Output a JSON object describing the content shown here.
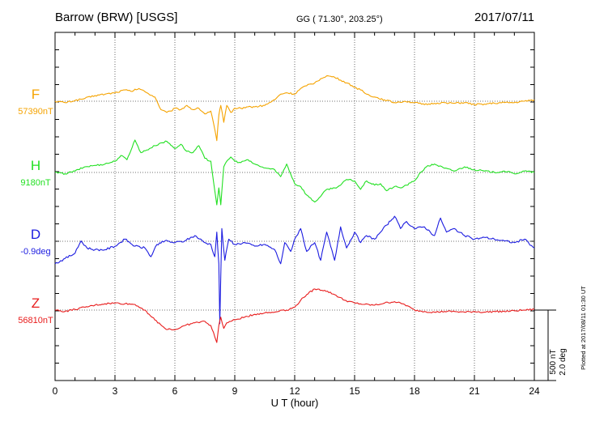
{
  "header": {
    "station": "Barrow (BRW)  [USGS]",
    "coords": "GG ( 71.30°, 203.25°)",
    "date": "2017/07/11"
  },
  "footer_note": "Plotted at 2017/08/11 01:30 UT",
  "scale": {
    "nt": "500 nT",
    "deg": "2.0 deg"
  },
  "chart_data": {
    "type": "line",
    "xlabel": "U T (hour)",
    "xlim": [
      0,
      24
    ],
    "xticks": [
      "0",
      "3",
      "6",
      "9",
      "12",
      "15",
      "18",
      "21",
      "24"
    ],
    "grid": true,
    "series": [
      {
        "name": "F",
        "baseline_label": "57390nT",
        "color": "#f5a300",
        "unit": "nT",
        "baseline": 57390,
        "x": [
          0,
          0.5,
          1,
          1.5,
          2,
          2.5,
          3,
          3.5,
          3.8,
          4.2,
          4.6,
          5,
          5.3,
          5.6,
          5.8,
          6,
          6.3,
          6.6,
          6.9,
          7.2,
          7.5,
          7.8,
          8.0,
          8.1,
          8.2,
          8.3,
          8.45,
          8.6,
          8.8,
          9,
          9.3,
          9.6,
          10,
          10.5,
          11,
          11.3,
          11.6,
          12,
          12.3,
          12.6,
          13,
          13.3,
          13.6,
          14,
          14.3,
          14.6,
          15,
          15.3,
          15.6,
          16,
          16.5,
          17,
          17.5,
          18,
          18.5,
          19,
          19.5,
          20,
          20.5,
          21,
          21.5,
          22,
          22.5,
          23,
          23.5,
          24
        ],
        "y": [
          57390,
          57380,
          57395,
          57410,
          57430,
          57440,
          57450,
          57470,
          57460,
          57480,
          57450,
          57420,
          57330,
          57310,
          57320,
          57340,
          57330,
          57360,
          57330,
          57340,
          57300,
          57320,
          57190,
          57110,
          57290,
          57360,
          57240,
          57360,
          57310,
          57340,
          57340,
          57350,
          57350,
          57360,
          57400,
          57440,
          57450,
          57440,
          57480,
          57500,
          57520,
          57550,
          57570,
          57560,
          57540,
          57520,
          57490,
          57470,
          57440,
          57420,
          57400,
          57380,
          57390,
          57380,
          57365,
          57375,
          57380,
          57375,
          57380,
          57365,
          57370,
          57375,
          57380,
          57380,
          57390,
          57400
        ]
      },
      {
        "name": "H",
        "baseline_label": "9180nT",
        "color": "#22e022",
        "unit": "nT",
        "baseline": 9180,
        "x": [
          0,
          0.5,
          1,
          1.5,
          2,
          2.5,
          3,
          3.3,
          3.6,
          4,
          4.3,
          4.6,
          5,
          5.3,
          5.6,
          6,
          6.3,
          6.6,
          6.9,
          7.2,
          7.5,
          7.8,
          8.0,
          8.1,
          8.2,
          8.3,
          8.45,
          8.6,
          8.8,
          9,
          9.3,
          9.6,
          10,
          10.3,
          10.6,
          11,
          11.3,
          11.6,
          12,
          12.3,
          12.6,
          13,
          13.3,
          13.6,
          14,
          14.3,
          14.6,
          15,
          15.3,
          15.6,
          16,
          16.3,
          16.6,
          17,
          17.3,
          17.6,
          18,
          18.3,
          18.6,
          19,
          19.5,
          20,
          20.5,
          21,
          21.5,
          22,
          22.5,
          23,
          23.5,
          24
        ],
        "y": [
          9180,
          9170,
          9190,
          9220,
          9230,
          9240,
          9260,
          9300,
          9270,
          9410,
          9320,
          9340,
          9370,
          9390,
          9400,
          9350,
          9380,
          9330,
          9320,
          9370,
          9280,
          9260,
          9050,
          8950,
          9070,
          8950,
          9220,
          9260,
          9290,
          9260,
          9250,
          9270,
          9240,
          9220,
          9210,
          9200,
          9150,
          9240,
          9100,
          9080,
          9020,
          8970,
          9010,
          9060,
          9070,
          9090,
          9130,
          9120,
          9060,
          9120,
          9090,
          9100,
          9050,
          9080,
          9070,
          9090,
          9120,
          9180,
          9220,
          9240,
          9210,
          9190,
          9220,
          9200,
          9190,
          9180,
          9190,
          9170,
          9190,
          9180
        ]
      },
      {
        "name": "D",
        "baseline_label": "-0.9deg",
        "color": "#1c1ce0",
        "unit": "deg",
        "baseline": -0.9,
        "x": [
          0,
          0.5,
          1,
          1.3,
          1.6,
          2,
          2.5,
          3,
          3.5,
          4,
          4.5,
          4.8,
          5.1,
          5.5,
          6,
          6.5,
          7,
          7.5,
          7.8,
          8.0,
          8.1,
          8.2,
          8.25,
          8.35,
          8.5,
          8.7,
          9,
          9.5,
          10,
          10.5,
          11,
          11.3,
          11.5,
          11.8,
          12,
          12.3,
          12.6,
          13,
          13.3,
          13.6,
          14,
          14.3,
          14.6,
          15,
          15.3,
          15.6,
          16,
          16.3,
          16.6,
          17,
          17.3,
          17.6,
          18,
          18.5,
          19,
          19.3,
          19.6,
          20,
          20.5,
          21,
          21.5,
          22,
          22.5,
          23,
          23.5,
          24
        ],
        "y": [
          -1.54,
          -1.39,
          -1.24,
          -0.89,
          -1.09,
          -1.14,
          -1.14,
          -1.04,
          -0.84,
          -1.04,
          -1.09,
          -1.34,
          -0.99,
          -0.89,
          -0.94,
          -0.89,
          -0.74,
          -0.94,
          -0.99,
          -1.34,
          -0.64,
          -1.54,
          -3.24,
          -0.54,
          -1.44,
          -0.84,
          -0.99,
          -0.94,
          -1.04,
          -0.99,
          -1.14,
          -1.54,
          -0.94,
          -1.19,
          -0.84,
          -0.54,
          -1.19,
          -0.94,
          -1.44,
          -0.64,
          -1.44,
          -0.49,
          -1.09,
          -0.64,
          -0.94,
          -0.74,
          -0.84,
          -0.64,
          -0.44,
          -0.19,
          -0.54,
          -0.34,
          -0.54,
          -0.49,
          -0.74,
          -0.24,
          -0.64,
          -0.54,
          -0.74,
          -0.84,
          -0.79,
          -0.84,
          -0.89,
          -0.94,
          -0.84,
          -1.09
        ]
      },
      {
        "name": "Z",
        "baseline_label": "56810nT",
        "color": "#e81c1c",
        "unit": "nT",
        "baseline": 56810,
        "x": [
          0,
          0.5,
          1,
          1.5,
          2,
          2.5,
          3,
          3.5,
          4,
          4.5,
          5,
          5.5,
          6,
          6.5,
          7,
          7.5,
          7.8,
          8.0,
          8.1,
          8.2,
          8.3,
          8.45,
          8.6,
          8.8,
          9,
          9.5,
          10,
          10.5,
          11,
          11.3,
          11.6,
          12,
          12.3,
          12.6,
          13,
          13.5,
          14,
          14.5,
          15,
          15.5,
          16,
          16.5,
          17,
          17.5,
          18,
          18.5,
          19,
          19.5,
          20,
          20.5,
          21,
          21.5,
          22,
          22.5,
          23,
          23.5,
          24
        ],
        "y": [
          56810,
          56800,
          56815,
          56830,
          56845,
          56855,
          56860,
          56855,
          56850,
          56810,
          56740,
          56680,
          56670,
          56700,
          56720,
          56730,
          56700,
          56620,
          56580,
          56700,
          56760,
          56680,
          56720,
          56730,
          56740,
          56760,
          56780,
          56790,
          56795,
          56810,
          56810,
          56830,
          56880,
          56920,
          56960,
          56950,
          56920,
          56880,
          56860,
          56850,
          56845,
          56860,
          56870,
          56850,
          56810,
          56800,
          56795,
          56800,
          56800,
          56795,
          56800,
          56795,
          56800,
          56800,
          56805,
          56810,
          56815
        ]
      }
    ]
  }
}
